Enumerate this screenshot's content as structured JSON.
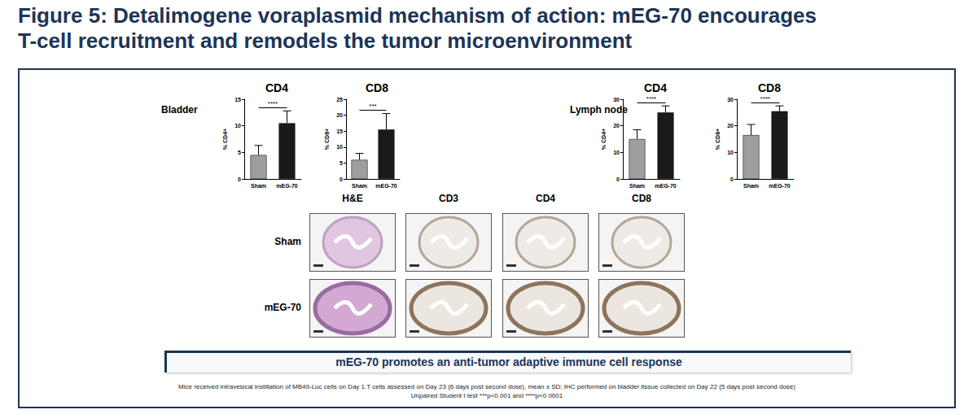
{
  "title_lines": [
    "Figure 5: Detalimogene voraplasmid mechanism of action: mEG-70 encourages",
    "T-cell recruitment and remodels the tumor microenvironment"
  ],
  "panel_labels": [
    "Bladder",
    "Lymph node"
  ],
  "chart_data": [
    {
      "type": "bar",
      "title": "CD4",
      "ylabel": "% CD4+",
      "categories": [
        "Sham",
        "mEG-70"
      ],
      "values": [
        4.5,
        10.5
      ],
      "errors": [
        1.8,
        2.3
      ],
      "colors": [
        "#9e9e9e",
        "#1a1a1a"
      ],
      "ylim": [
        0,
        15
      ],
      "yticks": [
        0,
        5,
        10,
        15
      ],
      "significance": "****"
    },
    {
      "type": "bar",
      "title": "CD8",
      "ylabel": "% CD8+",
      "categories": [
        "Sham",
        "mEG-70"
      ],
      "values": [
        6,
        15.5
      ],
      "errors": [
        2,
        5
      ],
      "colors": [
        "#9e9e9e",
        "#1a1a1a"
      ],
      "ylim": [
        0,
        25
      ],
      "yticks": [
        0,
        5,
        10,
        15,
        20,
        25
      ],
      "significance": "***"
    },
    {
      "type": "bar",
      "title": "CD4",
      "ylabel": "% CD4+",
      "categories": [
        "Sham",
        "mEG-70"
      ],
      "values": [
        15,
        25
      ],
      "errors": [
        3.5,
        2.5
      ],
      "colors": [
        "#9e9e9e",
        "#1a1a1a"
      ],
      "ylim": [
        0,
        30
      ],
      "yticks": [
        0,
        10,
        20,
        30
      ],
      "significance": "****"
    },
    {
      "type": "bar",
      "title": "CD8",
      "ylabel": "% CD8+",
      "categories": [
        "Sham",
        "mEG-70"
      ],
      "values": [
        16.5,
        25.5
      ],
      "errors": [
        4,
        2
      ],
      "colors": [
        "#9e9e9e",
        "#1a1a1a"
      ],
      "ylim": [
        0,
        30
      ],
      "yticks": [
        0,
        10,
        20,
        30
      ],
      "significance": "****"
    }
  ],
  "ihc": {
    "columns": [
      "H&E",
      "CD3",
      "CD4",
      "CD8"
    ],
    "rows": [
      "Sham",
      "mEG-70"
    ]
  },
  "banner": "mEG-70 promotes an anti-tumor adaptive immune cell response",
  "footnote_lines": [
    "Mice received intravesical instillation of MB49-Luc cells on Day 1.T cells assessed on Day 23 (6 days post second dose), mean ± SD; IHC performed on bladder tissue collected on Day 22 (5 days post second dose)",
    "Unpaired Student t test ***p<0.001 and ****p<0.0001"
  ]
}
